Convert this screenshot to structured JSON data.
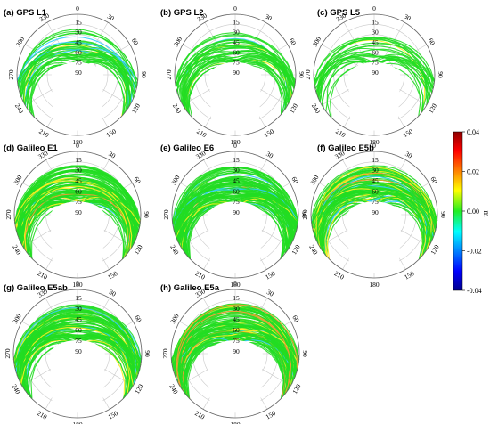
{
  "chart_data": {
    "type": "polar-skyplot",
    "panels": [
      {
        "label": "(a) GPS L1",
        "density": "medium"
      },
      {
        "label": "(b) GPS L2",
        "density": "medium"
      },
      {
        "label": "(c) GPS L5",
        "density": "sparse"
      },
      {
        "label": "(d) Galileo E1",
        "density": "dense"
      },
      {
        "label": "(e) Galileo E6",
        "density": "dense"
      },
      {
        "label": "(f) Galileo E5b",
        "density": "dense"
      },
      {
        "label": "(g) Galileo E5ab",
        "density": "dense"
      },
      {
        "label": "(h) Galileo E5a",
        "density": "dense"
      }
    ],
    "azimuth_ticks": [
      "0",
      "30",
      "60",
      "90",
      "120",
      "150",
      "180",
      "210",
      "240",
      "270",
      "300",
      "330"
    ],
    "elevation_ticks": [
      "15",
      "30",
      "45",
      "60",
      "75",
      "90"
    ],
    "colorbar": {
      "label": "m",
      "range": [
        -0.04,
        0.04
      ],
      "ticks": [
        "0.04",
        "0.02",
        "0.00",
        "-0.02",
        "-0.04"
      ],
      "colormap": "jet"
    },
    "grid": true
  },
  "colors": {
    "dominant_track": "#22dd22",
    "ring": "#c8c8c8"
  }
}
